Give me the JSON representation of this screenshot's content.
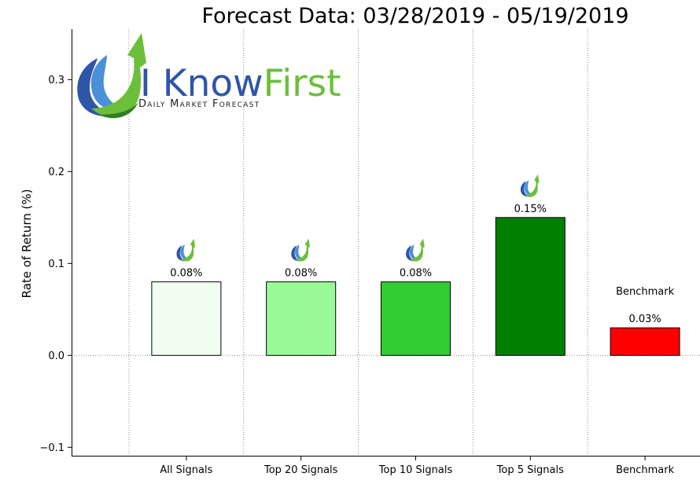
{
  "brand": {
    "name_part1": "I Know",
    "name_part2": "First",
    "tagline": "Daily Market Forecast",
    "color_primary": "#2e55a8",
    "color_secondary": "#6cbf3a",
    "icon": "i-know-first-logo-icon"
  },
  "chart_data": {
    "type": "bar",
    "title": "Forecast Data: 03/28/2019 - 05/19/2019",
    "xlabel": "",
    "ylabel": "Rate of Return (%)",
    "ylim": [
      -0.11,
      0.355
    ],
    "yticks": [
      -0.1,
      0.0,
      0.1,
      0.2,
      0.3
    ],
    "ytick_labels": [
      "−0.1",
      "0.0",
      "0.1",
      "0.2",
      "0.3"
    ],
    "categories": [
      "All Signals",
      "Top 20 Signals",
      "Top 10 Signals",
      "Top 5 Signals",
      "Benchmark"
    ],
    "values": [
      0.08,
      0.08,
      0.08,
      0.15,
      0.03
    ],
    "value_labels": [
      "0.08%",
      "0.08%",
      "0.08%",
      "0.15%",
      "0.03%"
    ],
    "colors": [
      "#f0fff0",
      "#98fb98",
      "#32cd32",
      "#008000",
      "#ff0000"
    ],
    "benchmark_label": "Benchmark",
    "grid": "vertical-dotted",
    "baseline": "dotted-at-zero"
  }
}
